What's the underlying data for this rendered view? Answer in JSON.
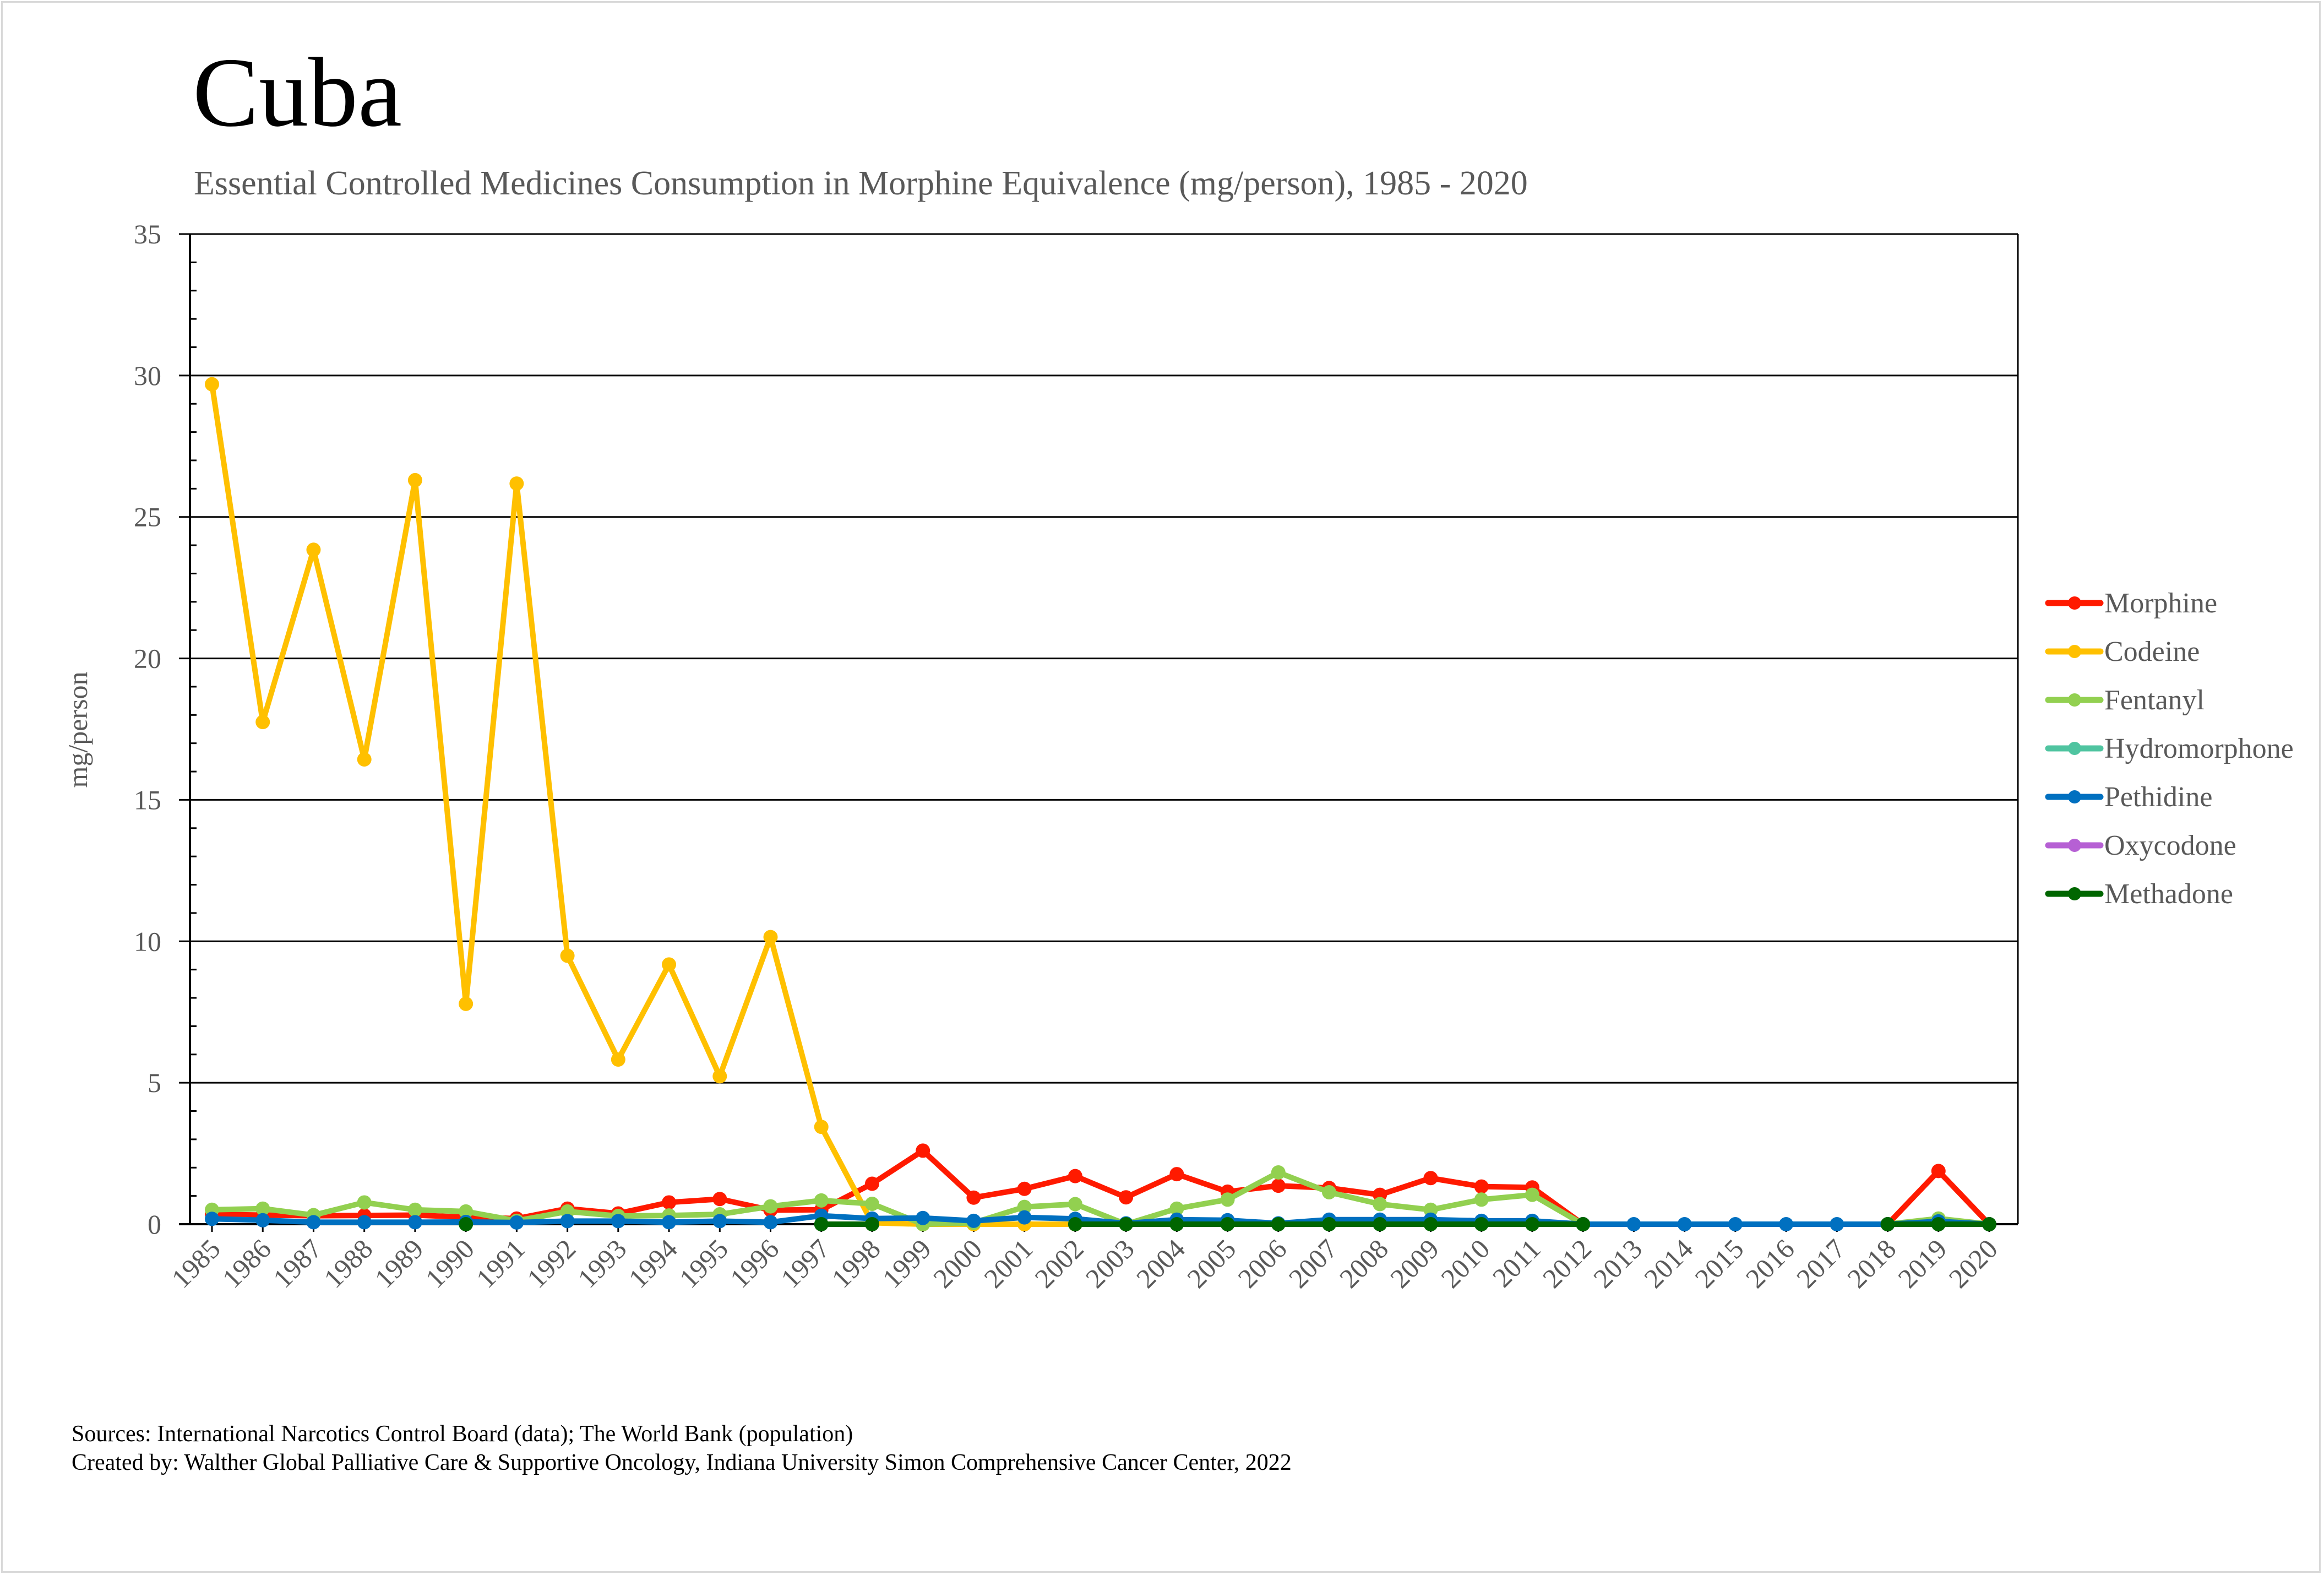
{
  "page": {
    "title": "Cuba",
    "subtitle": "Essential Controlled Medicines Consumption in Morphine Equivalence (mg/person), 1985 - 2020",
    "footer_sources": "Sources: International Narcotics Control Board (data); The World Bank (population)",
    "footer_created": "Created by: Walther Global Palliative Care & Supportive Oncology, Indiana University Simon Comprehensive Cancer Center, 2022"
  },
  "chart_data": {
    "type": "line",
    "title": "Cuba",
    "subtitle": "Essential Controlled Medicines Consumption in Morphine Equivalence (mg/person), 1985 - 2020",
    "xlabel": "",
    "ylabel": "mg/person",
    "ylim": [
      0,
      35
    ],
    "yticks": [
      0,
      5,
      10,
      15,
      20,
      25,
      30,
      35
    ],
    "y_minor_step": 1,
    "grid": true,
    "legend_position": "right",
    "x": [
      "1985",
      "1986",
      "1987",
      "1988",
      "1989",
      "1990",
      "1991",
      "1992",
      "1993",
      "1994",
      "1995",
      "1996",
      "1997",
      "1998",
      "1999",
      "2000",
      "2001",
      "2002",
      "2003",
      "2004",
      "2005",
      "2006",
      "2007",
      "2008",
      "2009",
      "2010",
      "2011",
      "2012",
      "2013",
      "2014",
      "2015",
      "2016",
      "2017",
      "2018",
      "2019",
      "2020"
    ],
    "series": [
      {
        "name": "Morphine",
        "color": "#ff1a00",
        "values": [
          0.35,
          0.32,
          0.3,
          0.31,
          0.32,
          0.25,
          0.2,
          0.55,
          0.38,
          0.77,
          0.89,
          0.5,
          0.51,
          1.43,
          2.6,
          0.94,
          1.25,
          1.7,
          0.95,
          1.77,
          1.15,
          1.36,
          1.28,
          1.04,
          1.63,
          1.33,
          1.3,
          0,
          null,
          null,
          null,
          null,
          null,
          0,
          1.88,
          0
        ]
      },
      {
        "name": "Codeine",
        "color": "#ffc000",
        "values": [
          29.69,
          17.75,
          23.84,
          16.43,
          26.3,
          7.79,
          26.18,
          9.49,
          5.82,
          9.18,
          5.23,
          10.15,
          3.44,
          0.05,
          0,
          0,
          0,
          0,
          null,
          null,
          null,
          null,
          null,
          null,
          null,
          null,
          null,
          null,
          null,
          null,
          null,
          null,
          null,
          null,
          null,
          null
        ]
      },
      {
        "name": "Fentanyl",
        "color": "#92d050",
        "values": [
          0.51,
          0.55,
          0.32,
          0.77,
          0.51,
          0.45,
          0.12,
          0.45,
          0.29,
          0.31,
          0.35,
          0.63,
          0.84,
          0.72,
          0,
          0.05,
          0.61,
          0.71,
          0,
          0.55,
          0.87,
          1.83,
          1.13,
          0.71,
          0.51,
          0.87,
          1.04,
          0,
          null,
          null,
          null,
          null,
          null,
          0,
          0.2,
          0
        ]
      },
      {
        "name": "Hydromorphone",
        "color": "#4fc4a0",
        "values": [
          null,
          null,
          null,
          null,
          null,
          null,
          null,
          null,
          null,
          null,
          null,
          null,
          null,
          null,
          null,
          null,
          null,
          null,
          null,
          null,
          null,
          null,
          null,
          null,
          null,
          null,
          null,
          null,
          null,
          null,
          null,
          null,
          null,
          null,
          null,
          null
        ]
      },
      {
        "name": "Pethidine",
        "color": "#0070c0",
        "values": [
          0.19,
          0.14,
          0.07,
          0.07,
          0.07,
          0.08,
          0.06,
          0.11,
          0.11,
          0.07,
          0.11,
          0.07,
          0.3,
          0.2,
          0.22,
          0.12,
          0.24,
          0.19,
          0.03,
          0.16,
          0.14,
          0.03,
          0.16,
          0.16,
          0.16,
          0.12,
          0.12,
          0,
          0,
          0,
          0,
          0,
          0,
          0,
          0.1,
          0
        ]
      },
      {
        "name": "Oxycodone",
        "color": "#b660d4",
        "values": [
          null,
          null,
          null,
          null,
          null,
          null,
          null,
          null,
          null,
          null,
          null,
          null,
          null,
          null,
          null,
          null,
          null,
          null,
          null,
          null,
          null,
          null,
          null,
          null,
          null,
          null,
          null,
          null,
          null,
          null,
          null,
          null,
          null,
          null,
          null,
          null
        ]
      },
      {
        "name": "Methadone",
        "color": "#006600",
        "values": [
          null,
          null,
          null,
          null,
          null,
          0,
          null,
          null,
          null,
          null,
          null,
          null,
          0,
          0,
          null,
          null,
          null,
          0,
          0,
          0,
          0,
          0,
          0,
          0,
          0,
          0,
          0,
          0,
          null,
          null,
          null,
          null,
          null,
          0,
          0,
          0
        ]
      }
    ]
  }
}
